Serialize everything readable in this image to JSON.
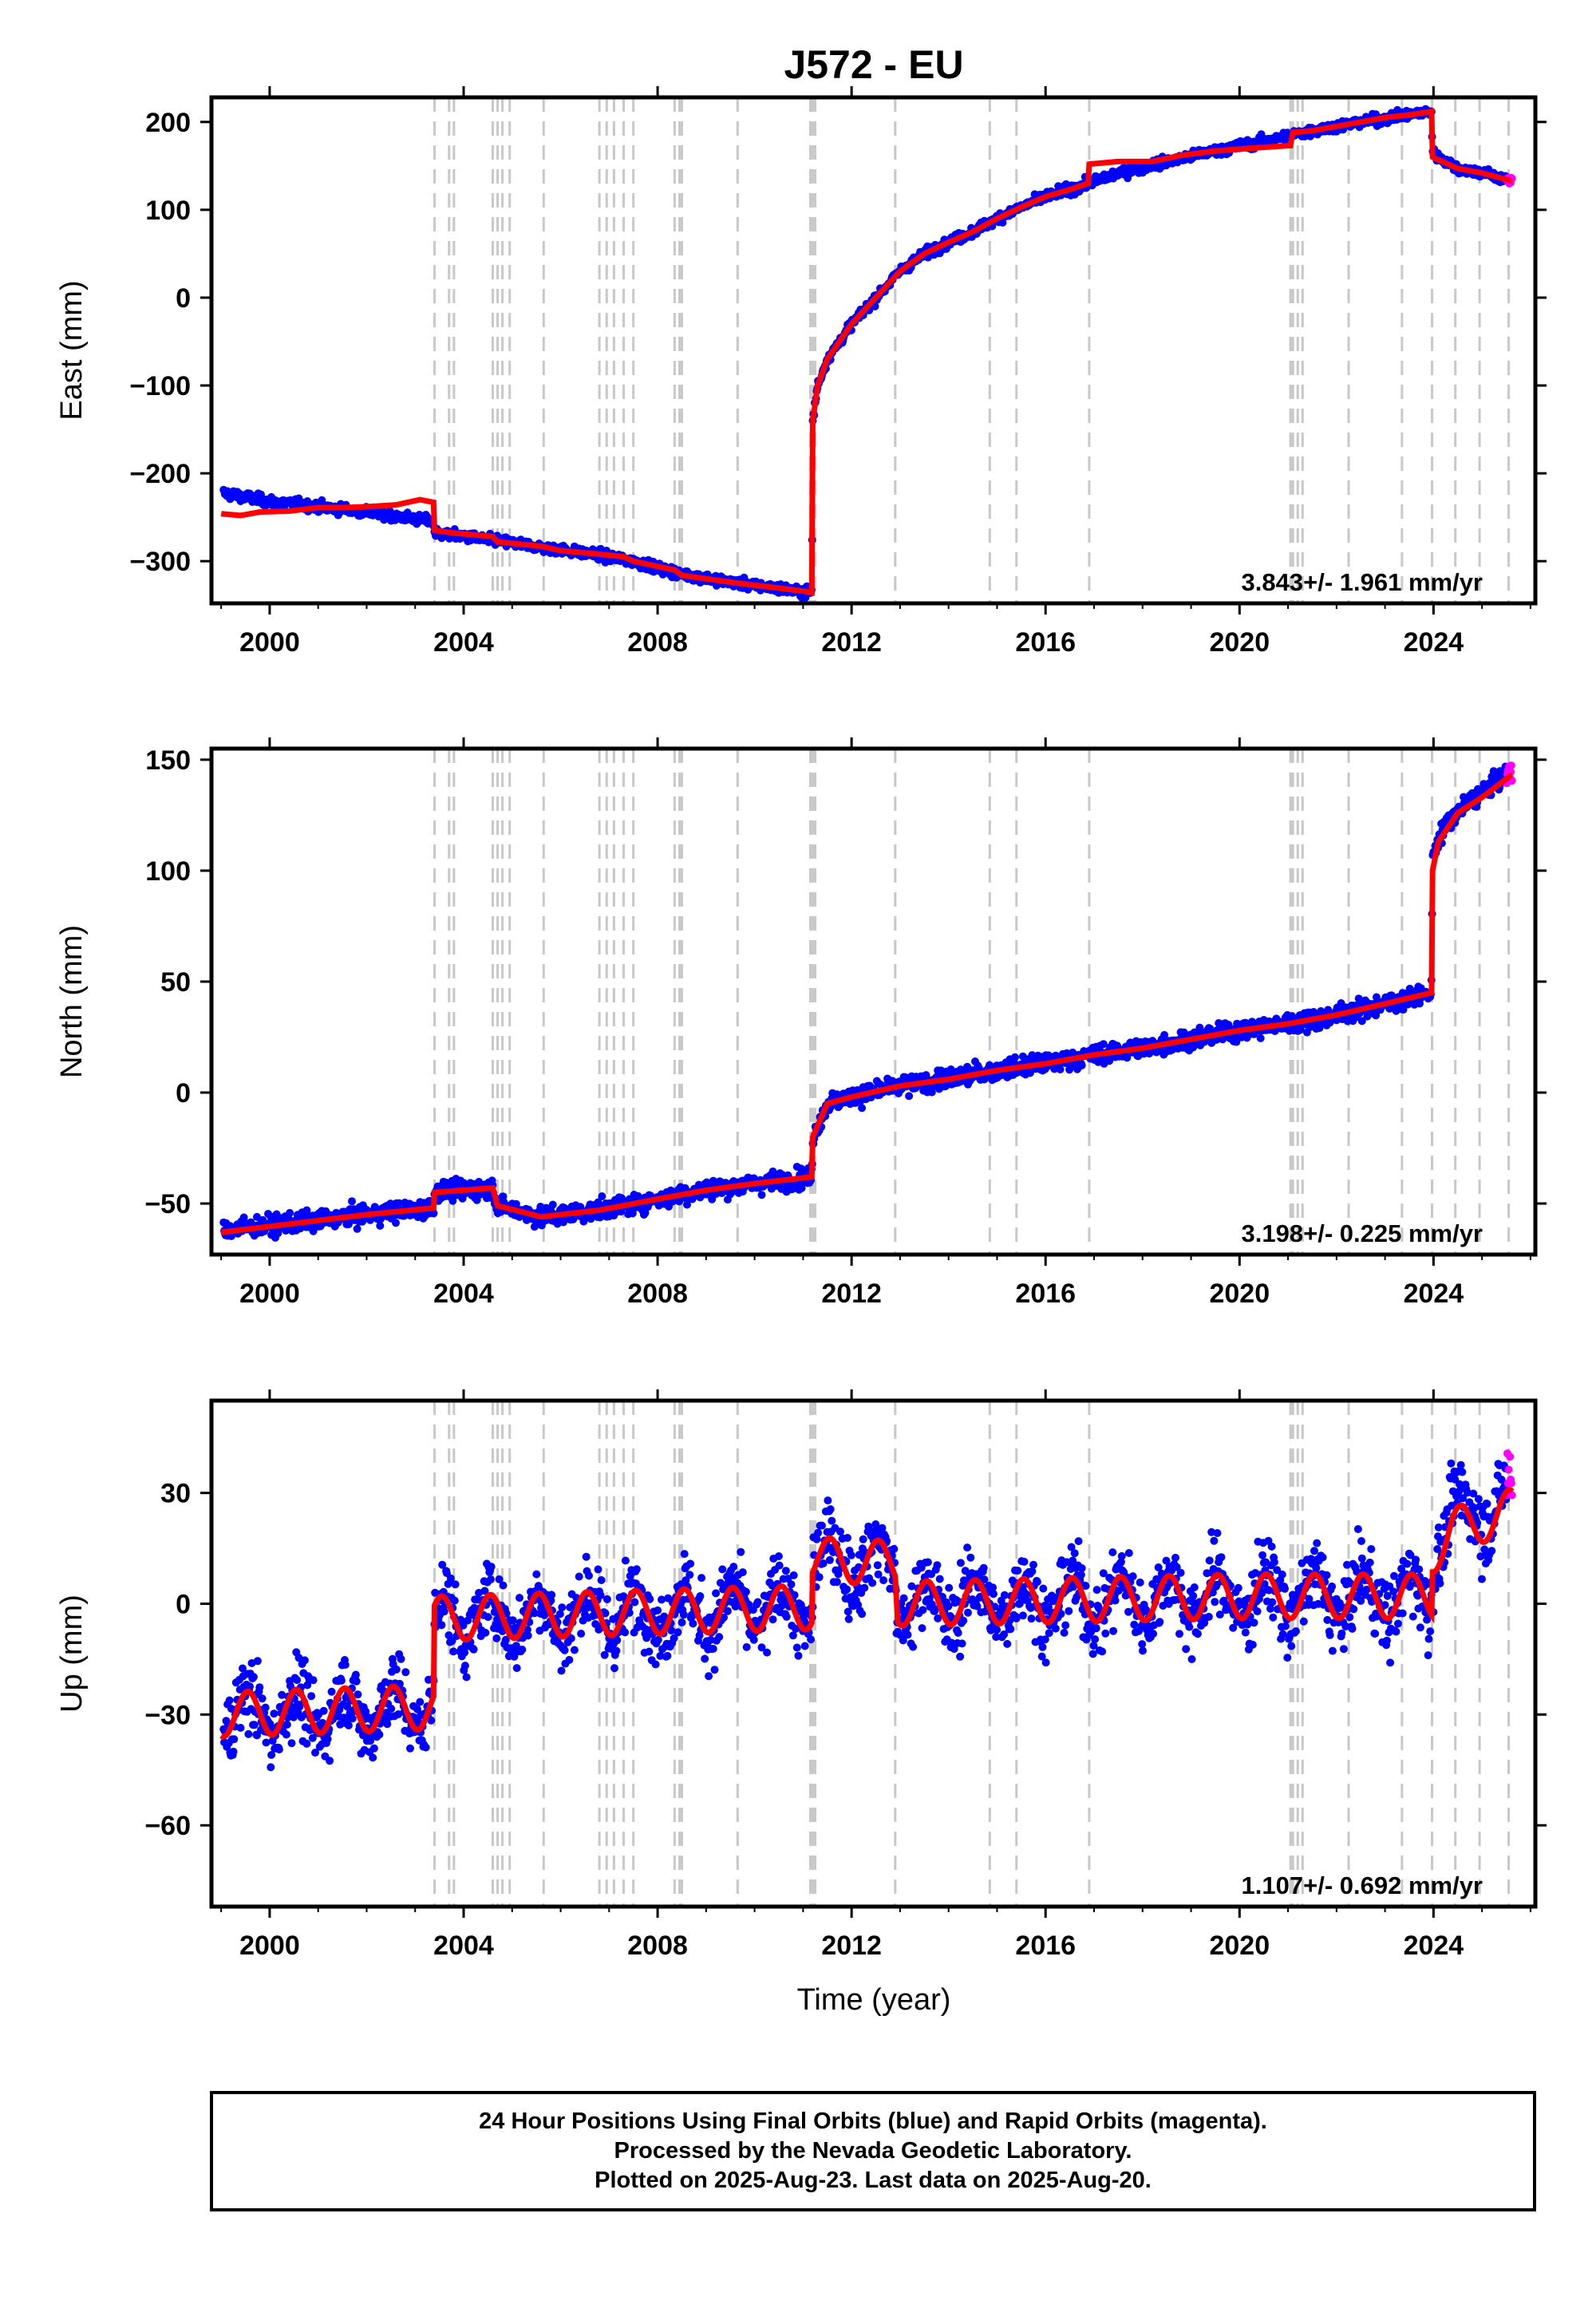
{
  "chart_data": {
    "type": "scatter",
    "title": "J572 - EU",
    "xlabel": "Time (year)",
    "x_ticks": [
      2000,
      2004,
      2008,
      2012,
      2016,
      2020,
      2024
    ],
    "xlim": [
      1998.8,
      2026.1
    ],
    "colors": {
      "final_orbits": "#0000ff",
      "rapid_orbits": "#ff00ff",
      "model": "#ff0000",
      "event_lines": "#c8c8c8"
    },
    "event_lines": [
      2003.4,
      2003.7,
      2003.8,
      2004.6,
      2004.7,
      2004.8,
      2004.95,
      2005.65,
      2006.8,
      2006.95,
      2007.1,
      2007.3,
      2007.5,
      2008.35,
      2008.45,
      2008.5,
      2009.65,
      2011.15,
      2011.2,
      2011.25,
      2012.9,
      2014.85,
      2015.4,
      2016.9,
      2021.05,
      2021.1,
      2021.2,
      2021.3,
      2022.25,
      2023.35,
      2023.97,
      2024.45,
      2024.95,
      2025.55
    ],
    "panels": [
      {
        "component": "east",
        "ylabel": "East (mm)",
        "ylim": [
          -348,
          228
        ],
        "y_ticks": [
          200,
          100,
          0,
          -100,
          -200,
          -300
        ],
        "y_tick_labels": [
          "200",
          "100",
          "0",
          "−100",
          "−200",
          "−300"
        ],
        "rate_label": "3.843+/- 1.961 mm/yr",
        "noise": 4,
        "model_knots": [
          [
            1999.0,
            -246
          ],
          [
            1999.4,
            -248
          ],
          [
            1999.8,
            -244
          ],
          [
            2000.4,
            -243
          ],
          [
            2001.0,
            -239
          ],
          [
            2001.5,
            -239
          ],
          [
            2002.0,
            -238
          ],
          [
            2002.6,
            -236
          ],
          [
            2003.1,
            -230
          ],
          [
            2003.38,
            -233
          ],
          [
            2003.4,
            -265
          ],
          [
            2003.8,
            -268
          ],
          [
            2004.6,
            -272
          ],
          [
            2004.7,
            -278
          ],
          [
            2005.6,
            -283
          ],
          [
            2006.0,
            -288
          ],
          [
            2006.8,
            -292
          ],
          [
            2007.3,
            -295
          ],
          [
            2007.5,
            -300
          ],
          [
            2008.35,
            -310
          ],
          [
            2008.5,
            -316
          ],
          [
            2009.0,
            -320
          ],
          [
            2009.65,
            -325
          ],
          [
            2010.4,
            -330
          ],
          [
            2011.0,
            -334
          ],
          [
            2011.18,
            -336
          ],
          [
            2011.2,
            -140
          ],
          [
            2011.3,
            -100
          ],
          [
            2011.5,
            -70
          ],
          [
            2012.0,
            -30
          ],
          [
            2012.5,
            0
          ],
          [
            2013.0,
            30
          ],
          [
            2013.5,
            50
          ],
          [
            2014.0,
            63
          ],
          [
            2014.5,
            75
          ],
          [
            2015.0,
            90
          ],
          [
            2015.5,
            103
          ],
          [
            2016.0,
            115
          ],
          [
            2016.5,
            123
          ],
          [
            2016.88,
            130
          ],
          [
            2016.9,
            152
          ],
          [
            2017.5,
            155
          ],
          [
            2018.2,
            155
          ],
          [
            2018.8,
            162
          ],
          [
            2019.5,
            167
          ],
          [
            2020.2,
            170
          ],
          [
            2021.0,
            173
          ],
          [
            2021.05,
            173
          ],
          [
            2021.1,
            188
          ],
          [
            2021.5,
            190
          ],
          [
            2022.2,
            197
          ],
          [
            2023.0,
            205
          ],
          [
            2023.5,
            208
          ],
          [
            2023.96,
            212
          ],
          [
            2023.98,
            160
          ],
          [
            2024.5,
            147
          ],
          [
            2025.0,
            142
          ],
          [
            2025.6,
            133
          ]
        ],
        "data_knots": [
          [
            1999.0,
            -222
          ],
          [
            2000.0,
            -232
          ],
          [
            2001.0,
            -238
          ],
          [
            2002.0,
            -244
          ],
          [
            2003.38,
            -255
          ],
          [
            2003.4,
            -268
          ],
          [
            2004.6,
            -276
          ],
          [
            2005.6,
            -284
          ],
          [
            2006.8,
            -293
          ],
          [
            2007.5,
            -300
          ],
          [
            2008.5,
            -315
          ],
          [
            2009.65,
            -325
          ],
          [
            2011.18,
            -336
          ],
          [
            2011.2,
            -140
          ],
          [
            2011.3,
            -100
          ],
          [
            2011.5,
            -70
          ],
          [
            2012.0,
            -30
          ],
          [
            2012.5,
            0
          ],
          [
            2013.0,
            30
          ],
          [
            2013.5,
            50
          ],
          [
            2014.0,
            63
          ],
          [
            2014.5,
            75
          ],
          [
            2015.0,
            90
          ],
          [
            2015.5,
            103
          ],
          [
            2016.0,
            115
          ],
          [
            2016.9,
            130
          ],
          [
            2017.5,
            142
          ],
          [
            2018.5,
            155
          ],
          [
            2019.5,
            167
          ],
          [
            2020.5,
            178
          ],
          [
            2021.5,
            190
          ],
          [
            2022.5,
            200
          ],
          [
            2023.5,
            208
          ],
          [
            2023.96,
            212
          ],
          [
            2023.98,
            165
          ],
          [
            2024.5,
            147
          ],
          [
            2025.0,
            142
          ],
          [
            2025.6,
            133
          ]
        ]
      },
      {
        "component": "north",
        "ylabel": "North (mm)",
        "ylim": [
          -73,
          155
        ],
        "y_ticks": [
          150,
          100,
          50,
          0,
          -50
        ],
        "y_tick_labels": [
          "150",
          "100",
          "50",
          "0",
          "−50"
        ],
        "rate_label": "3.198+/- 0.225 mm/yr",
        "noise": 3,
        "model_knots": [
          [
            1999.0,
            -63
          ],
          [
            2000.5,
            -59
          ],
          [
            2002.0,
            -55
          ],
          [
            2003.38,
            -52
          ],
          [
            2003.4,
            -45
          ],
          [
            2004.6,
            -43
          ],
          [
            2004.7,
            -51
          ],
          [
            2005.6,
            -56
          ],
          [
            2006.8,
            -53
          ],
          [
            2008.0,
            -48
          ],
          [
            2009.0,
            -44
          ],
          [
            2010.0,
            -41
          ],
          [
            2011.18,
            -38
          ],
          [
            2011.2,
            -20
          ],
          [
            2011.5,
            -5
          ],
          [
            2012.0,
            -2
          ],
          [
            2013.0,
            3
          ],
          [
            2014.0,
            6
          ],
          [
            2015.0,
            10
          ],
          [
            2016.0,
            13
          ],
          [
            2017.0,
            17
          ],
          [
            2018.0,
            20
          ],
          [
            2019.0,
            24
          ],
          [
            2020.0,
            28
          ],
          [
            2021.0,
            31
          ],
          [
            2022.0,
            35
          ],
          [
            2023.0,
            40
          ],
          [
            2023.96,
            45
          ],
          [
            2023.98,
            100
          ],
          [
            2024.1,
            113
          ],
          [
            2024.5,
            126
          ],
          [
            2025.0,
            133
          ],
          [
            2025.6,
            143
          ]
        ],
        "data_knots": [
          [
            1999.0,
            -62
          ],
          [
            2000.5,
            -59
          ],
          [
            2002.0,
            -55
          ],
          [
            2003.38,
            -52
          ],
          [
            2003.4,
            -45
          ],
          [
            2004.6,
            -43
          ],
          [
            2004.7,
            -51
          ],
          [
            2005.6,
            -56
          ],
          [
            2006.8,
            -53
          ],
          [
            2008.0,
            -48
          ],
          [
            2009.0,
            -44
          ],
          [
            2010.0,
            -41
          ],
          [
            2011.18,
            -38
          ],
          [
            2011.2,
            -20
          ],
          [
            2011.5,
            -5
          ],
          [
            2012.0,
            -2
          ],
          [
            2013.0,
            3
          ],
          [
            2014.0,
            6
          ],
          [
            2015.0,
            10
          ],
          [
            2016.0,
            13
          ],
          [
            2017.0,
            17
          ],
          [
            2018.0,
            20
          ],
          [
            2019.0,
            24
          ],
          [
            2020.0,
            28
          ],
          [
            2021.0,
            31
          ],
          [
            2022.0,
            35
          ],
          [
            2023.0,
            40
          ],
          [
            2023.96,
            45
          ],
          [
            2023.98,
            108
          ],
          [
            2024.3,
            122
          ],
          [
            2024.8,
            132
          ],
          [
            2025.6,
            145
          ]
        ]
      },
      {
        "component": "up",
        "ylabel": "Up (mm)",
        "ylim": [
          -82,
          55
        ],
        "y_ticks": [
          30,
          0,
          -30,
          -60
        ],
        "y_tick_labels": [
          "30",
          "0",
          "−30",
          "−60"
        ],
        "rate_label": "1.107+/- 0.692 mm/yr",
        "noise": 7,
        "seasonal_amplitude": 6,
        "model_knots": [
          [
            1999.0,
            -30
          ],
          [
            2003.38,
            -28
          ],
          [
            2003.4,
            -4
          ],
          [
            2011.18,
            -1
          ],
          [
            2011.2,
            12
          ],
          [
            2012.9,
            11
          ],
          [
            2012.95,
            0
          ],
          [
            2020.0,
            2
          ],
          [
            2023.96,
            2
          ],
          [
            2023.98,
            14
          ],
          [
            2024.4,
            20
          ],
          [
            2025.6,
            25
          ]
        ],
        "data_knots": [
          [
            1999.0,
            -30
          ],
          [
            2003.38,
            -28
          ],
          [
            2003.4,
            -4
          ],
          [
            2011.18,
            -1
          ],
          [
            2011.2,
            12
          ],
          [
            2012.9,
            11
          ],
          [
            2012.95,
            0
          ],
          [
            2020.0,
            2
          ],
          [
            2023.96,
            2
          ],
          [
            2023.98,
            14
          ],
          [
            2024.4,
            24
          ],
          [
            2025.6,
            28
          ]
        ]
      }
    ]
  },
  "footer": {
    "line1": "24 Hour Positions Using Final Orbits (blue) and Rapid Orbits (magenta).",
    "line2": "Processed by the Nevada Geodetic Laboratory.",
    "line3": "Plotted on 2025-Aug-23. Last data on 2025-Aug-20."
  }
}
